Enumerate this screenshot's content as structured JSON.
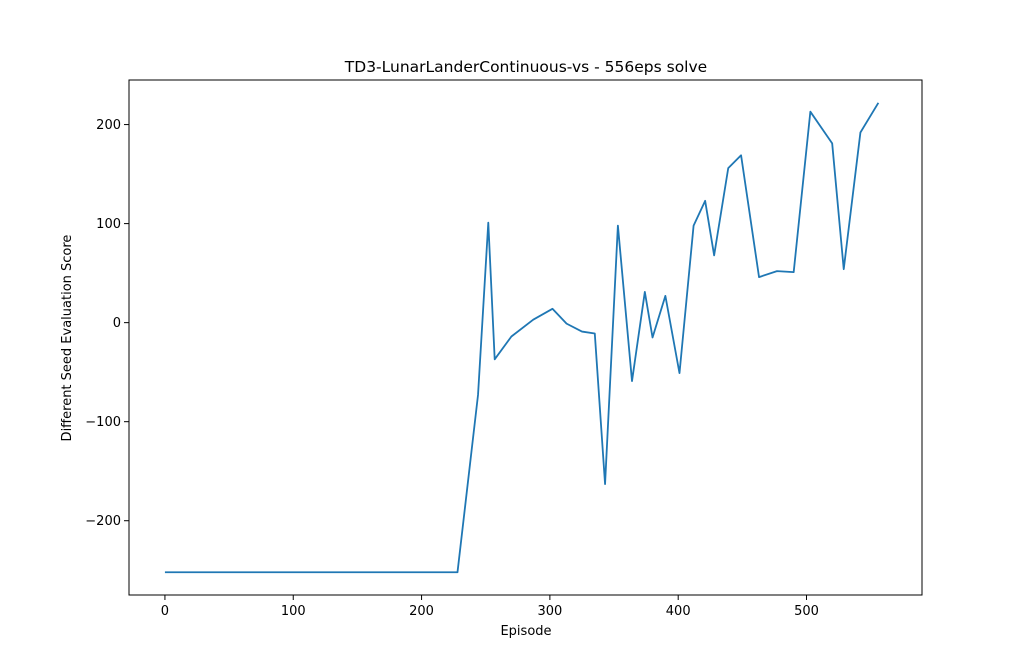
{
  "chart_data": {
    "type": "line",
    "title": "TD3-LunarLanderContinuous-vs - 556eps solve",
    "xlabel": "Episode",
    "ylabel": "Different Seed Evaluation Score",
    "xlim": [
      -28,
      590
    ],
    "ylim": [
      -275,
      245
    ],
    "x_ticks": [
      0,
      100,
      200,
      300,
      400,
      500
    ],
    "y_ticks": [
      -200,
      -100,
      0,
      100,
      200
    ],
    "grid": false,
    "legend": "none",
    "colors": {
      "line": "#1f77b4",
      "axes": "#000000",
      "background": "#ffffff"
    },
    "series": [
      {
        "x": [
          0,
          228,
          244,
          252,
          257,
          270,
          287,
          302,
          313,
          325,
          335,
          343,
          353,
          364,
          374,
          380,
          390,
          401,
          412,
          421,
          428,
          439,
          449,
          463,
          477,
          490,
          503,
          520,
          529,
          542,
          556
        ],
        "y": [
          -252,
          -252,
          -73,
          101,
          -37,
          -14,
          3,
          14,
          -1,
          -9,
          -11,
          -163,
          98,
          -59,
          31,
          -15,
          27,
          -51,
          98,
          123,
          68,
          156,
          169,
          46,
          52,
          51,
          213,
          181,
          54,
          192,
          222
        ]
      }
    ]
  }
}
